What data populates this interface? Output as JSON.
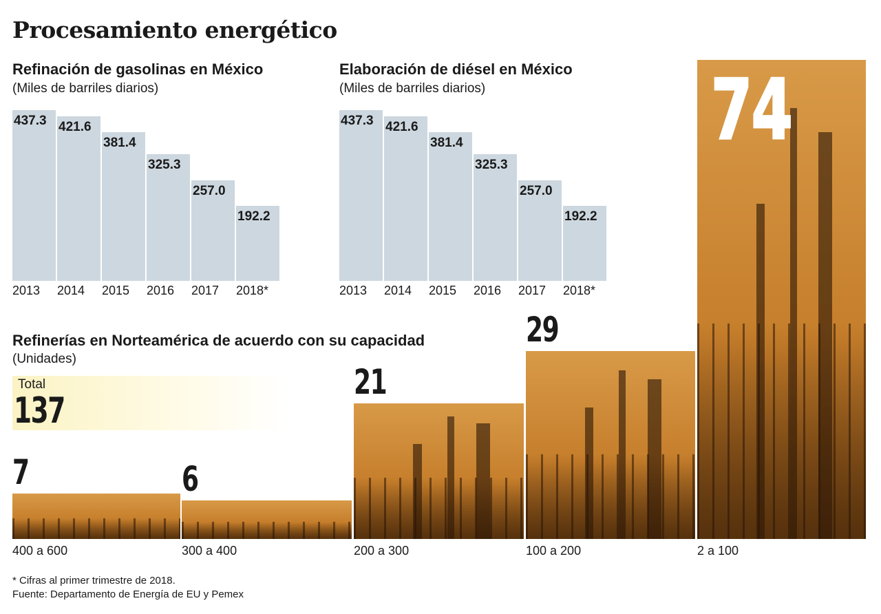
{
  "title": "Procesamiento energético",
  "chart_data": [
    {
      "type": "bar",
      "title": "Refinación de gasolinas en México",
      "subtitle": "(Miles de barriles diarios)",
      "categories": [
        "2013",
        "2014",
        "2015",
        "2016",
        "2017",
        "2018*"
      ],
      "values": [
        437.3,
        421.6,
        381.4,
        325.3,
        257.0,
        192.2
      ],
      "value_labels": [
        "437.3",
        "421.6",
        "381.4",
        "325.3",
        "257.0",
        "192.2"
      ],
      "color": "#cdd7df"
    },
    {
      "type": "bar",
      "title": "Elaboración de diésel en México",
      "subtitle": "(Miles de barriles diarios)",
      "categories": [
        "2013",
        "2014",
        "2015",
        "2016",
        "2017",
        "2018*"
      ],
      "values": [
        437.3,
        421.6,
        381.4,
        325.3,
        257.0,
        192.2
      ],
      "value_labels": [
        "437.3",
        "421.6",
        "381.4",
        "325.3",
        "257.0",
        "192.2"
      ],
      "color": "#cdd7df"
    },
    {
      "type": "bar",
      "title": "Refinerías en Norteamérica de acuerdo con su capacidad",
      "subtitle": "(Unidades)",
      "total_label": "Total",
      "total": "137",
      "categories": [
        "400 a 600",
        "300 a 400",
        "200 a 300",
        "100 a 200",
        "2 a 100"
      ],
      "values": [
        7,
        6,
        21,
        29,
        74
      ],
      "value_labels": [
        "7",
        "6",
        "21",
        "29",
        "74"
      ],
      "color": "#c57d2a"
    }
  ],
  "footnotes": [
    "* Cifras al primer trimestre de 2018.",
    "Fuente: Departamento de Energía de EU y Pemex"
  ]
}
